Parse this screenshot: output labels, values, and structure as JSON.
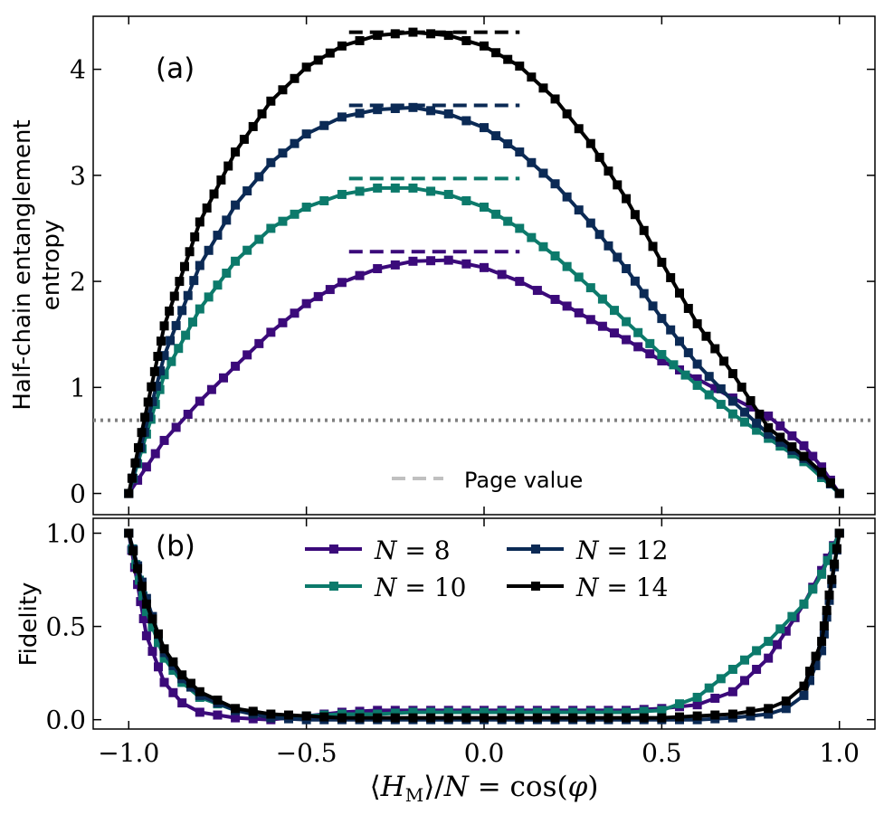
{
  "chart_data": [
    {
      "panel": "a",
      "type": "line",
      "panel_label": "(a)",
      "ylabel_line1": "Half-chain entanglement",
      "ylabel_line2": "entropy",
      "ylim": [
        -0.2,
        4.5
      ],
      "xlim": [
        -1.1,
        1.1
      ],
      "yticks": [
        0,
        1,
        2,
        3,
        4
      ],
      "ytick_labels": [
        "0",
        "1",
        "2",
        "3",
        "4"
      ],
      "reference_line": {
        "y": 0.69,
        "style": "dotted",
        "color": "#808080"
      },
      "page_values": [
        {
          "N": 8,
          "value": 2.28,
          "x_from": -0.38,
          "x_to": 0.1
        },
        {
          "N": 10,
          "value": 2.97,
          "x_from": -0.38,
          "x_to": 0.1
        },
        {
          "N": 12,
          "value": 3.66,
          "x_from": -0.38,
          "x_to": 0.1
        },
        {
          "N": 14,
          "value": 4.35,
          "x_from": -0.38,
          "x_to": 0.1
        }
      ],
      "page_legend_label": "Page value",
      "page_legend_color": "#c0c0c0",
      "series": [
        {
          "name": "N = 8",
          "color": "#3b0a7a",
          "x": [
            -1.0,
            -0.9,
            -0.8,
            -0.7,
            -0.6,
            -0.5,
            -0.4,
            -0.3,
            -0.2,
            -0.1,
            0.0,
            0.1,
            0.2,
            0.3,
            0.4,
            0.5,
            0.6,
            0.7,
            0.8,
            0.9,
            0.95,
            1.0
          ],
          "values": [
            0.0,
            0.5,
            0.87,
            1.2,
            1.52,
            1.79,
            1.99,
            2.12,
            2.19,
            2.2,
            2.13,
            2.0,
            1.83,
            1.64,
            1.45,
            1.25,
            1.08,
            0.9,
            0.73,
            0.45,
            0.25,
            0.0
          ]
        },
        {
          "name": "N = 10",
          "color": "#0c7a6b",
          "x": [
            -1.0,
            -0.9,
            -0.8,
            -0.7,
            -0.6,
            -0.5,
            -0.4,
            -0.3,
            -0.2,
            -0.1,
            0.0,
            0.1,
            0.2,
            0.3,
            0.4,
            0.5,
            0.6,
            0.7,
            0.8,
            0.9,
            0.95,
            1.0
          ],
          "values": [
            0.0,
            1.12,
            1.74,
            2.19,
            2.5,
            2.7,
            2.82,
            2.88,
            2.88,
            2.82,
            2.7,
            2.5,
            2.24,
            1.94,
            1.62,
            1.31,
            1.02,
            0.75,
            0.52,
            0.3,
            0.15,
            0.0
          ]
        },
        {
          "name": "N = 12",
          "color": "#0b2a55",
          "x": [
            -1.0,
            -0.9,
            -0.8,
            -0.7,
            -0.6,
            -0.5,
            -0.4,
            -0.3,
            -0.2,
            -0.1,
            0.0,
            0.1,
            0.2,
            0.3,
            0.4,
            0.5,
            0.6,
            0.7,
            0.8,
            0.9,
            0.95,
            1.0
          ],
          "values": [
            0.0,
            1.3,
            2.15,
            2.72,
            3.12,
            3.39,
            3.55,
            3.62,
            3.64,
            3.58,
            3.45,
            3.22,
            2.92,
            2.55,
            2.12,
            1.65,
            1.22,
            0.87,
            0.56,
            0.33,
            0.18,
            0.0
          ]
        },
        {
          "name": "N = 14",
          "color": "#000000",
          "x": [
            -1.0,
            -0.9,
            -0.8,
            -0.7,
            -0.6,
            -0.5,
            -0.4,
            -0.3,
            -0.2,
            -0.1,
            0.0,
            0.1,
            0.2,
            0.3,
            0.4,
            0.5,
            0.6,
            0.7,
            0.8,
            0.9,
            0.95,
            1.0
          ],
          "values": [
            0.0,
            1.58,
            2.56,
            3.22,
            3.7,
            4.02,
            4.22,
            4.32,
            4.35,
            4.32,
            4.22,
            4.03,
            3.72,
            3.3,
            2.78,
            2.18,
            1.6,
            1.13,
            0.62,
            0.35,
            0.2,
            0.0
          ]
        }
      ]
    },
    {
      "panel": "b",
      "type": "line",
      "panel_label": "(b)",
      "ylabel": "Fidelity",
      "ylim": [
        -0.05,
        1.08
      ],
      "xlim": [
        -1.1,
        1.1
      ],
      "yticks": [
        0.0,
        0.5,
        1.0
      ],
      "ytick_labels": [
        "0.0",
        "0.5",
        "1.0"
      ],
      "xticks": [
        -1.0,
        -0.5,
        0.0,
        0.5,
        1.0
      ],
      "xtick_labels": [
        "−1.0",
        "−0.5",
        "0.0",
        "0.5",
        "1.0"
      ],
      "xlabel": "⟨H_M⟩/N = cos(φ)",
      "legend_position": "top-center",
      "legend_labels": [
        "N = 8",
        "N = 10",
        "N = 12",
        "N = 14"
      ],
      "series": [
        {
          "name": "N = 8",
          "color": "#3b0a7a",
          "x": [
            -1.0,
            -0.95,
            -0.9,
            -0.85,
            -0.8,
            -0.7,
            -0.6,
            -0.5,
            -0.4,
            -0.3,
            -0.2,
            -0.1,
            0.0,
            0.1,
            0.2,
            0.3,
            0.4,
            0.5,
            0.6,
            0.7,
            0.8,
            0.9,
            0.95,
            1.0
          ],
          "values": [
            1.0,
            0.45,
            0.2,
            0.09,
            0.04,
            0.01,
            0.0,
            0.02,
            0.04,
            0.05,
            0.05,
            0.05,
            0.05,
            0.05,
            0.05,
            0.05,
            0.05,
            0.06,
            0.08,
            0.15,
            0.33,
            0.62,
            0.8,
            1.0
          ]
        },
        {
          "name": "N = 10",
          "color": "#0c7a6b",
          "x": [
            -1.0,
            -0.95,
            -0.9,
            -0.85,
            -0.8,
            -0.7,
            -0.6,
            -0.5,
            -0.4,
            -0.3,
            -0.2,
            -0.1,
            0.0,
            0.1,
            0.2,
            0.3,
            0.4,
            0.5,
            0.6,
            0.7,
            0.8,
            0.9,
            0.95,
            1.0
          ],
          "values": [
            1.0,
            0.58,
            0.33,
            0.2,
            0.12,
            0.05,
            0.02,
            0.02,
            0.03,
            0.03,
            0.04,
            0.04,
            0.04,
            0.04,
            0.04,
            0.04,
            0.04,
            0.05,
            0.12,
            0.27,
            0.42,
            0.62,
            0.78,
            1.0
          ]
        },
        {
          "name": "N = 12",
          "color": "#0b2a55",
          "x": [
            -1.0,
            -0.95,
            -0.9,
            -0.85,
            -0.8,
            -0.7,
            -0.6,
            -0.5,
            -0.4,
            -0.3,
            -0.2,
            -0.1,
            0.0,
            0.1,
            0.2,
            0.3,
            0.4,
            0.5,
            0.6,
            0.7,
            0.8,
            0.85,
            0.9,
            0.95,
            1.0
          ],
          "values": [
            1.0,
            0.65,
            0.36,
            0.22,
            0.13,
            0.05,
            0.01,
            0.0,
            0.0,
            0.0,
            0.0,
            0.0,
            0.0,
            0.0,
            0.0,
            0.0,
            0.0,
            0.0,
            0.0,
            0.01,
            0.03,
            0.06,
            0.13,
            0.37,
            1.0
          ]
        },
        {
          "name": "N = 14",
          "color": "#000000",
          "x": [
            -1.0,
            -0.95,
            -0.9,
            -0.85,
            -0.8,
            -0.7,
            -0.6,
            -0.5,
            -0.4,
            -0.3,
            -0.2,
            -0.1,
            0.0,
            0.1,
            0.2,
            0.3,
            0.4,
            0.5,
            0.6,
            0.7,
            0.8,
            0.85,
            0.9,
            0.95,
            1.0
          ],
          "values": [
            1.0,
            0.62,
            0.38,
            0.24,
            0.15,
            0.06,
            0.03,
            0.02,
            0.01,
            0.01,
            0.01,
            0.01,
            0.01,
            0.01,
            0.01,
            0.01,
            0.01,
            0.01,
            0.02,
            0.03,
            0.06,
            0.1,
            0.18,
            0.42,
            1.0
          ]
        }
      ]
    }
  ]
}
